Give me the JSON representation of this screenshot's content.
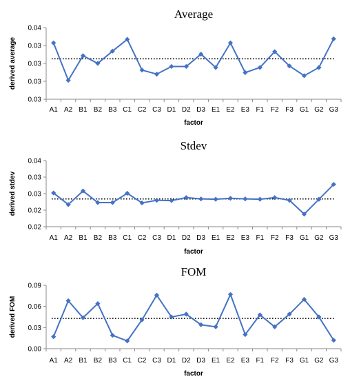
{
  "chart_data": [
    {
      "type": "line",
      "title": "Average",
      "xlabel": "factor",
      "ylabel": "derived average",
      "categories": [
        "A1",
        "A2",
        "B1",
        "B2",
        "B3",
        "C1",
        "C2",
        "C3",
        "D1",
        "D2",
        "D3",
        "E1",
        "E2",
        "E3",
        "F1",
        "F2",
        "F3",
        "G1",
        "G2",
        "G3"
      ],
      "series": [
        {
          "values": [
            0.037,
            0.0297,
            0.0345,
            0.033,
            0.0354,
            0.0377,
            0.0317,
            0.0309,
            0.0324,
            0.0324,
            0.0348,
            0.0322,
            0.037,
            0.0312,
            0.0322,
            0.0353,
            0.0325,
            0.0306,
            0.0322,
            0.0378
          ]
        }
      ],
      "reference_line": 0.0339,
      "ylim": [
        0.026,
        0.04
      ],
      "yticks": [
        "0.03",
        "0.03",
        "0.03",
        "0.03",
        "0.04"
      ],
      "color": "#4472c4",
      "reference_style": "dotted"
    },
    {
      "type": "line",
      "title": "Stdev",
      "xlabel": "factor",
      "ylabel": "derived stdev",
      "categories": [
        "A1",
        "A2",
        "B1",
        "B2",
        "B3",
        "C1",
        "C2",
        "C3",
        "D1",
        "D2",
        "D3",
        "E1",
        "E2",
        "E3",
        "F1",
        "F2",
        "F3",
        "G1",
        "G2",
        "G3"
      ],
      "series": [
        {
          "values": [
            0.0302,
            0.0267,
            0.0308,
            0.0273,
            0.0273,
            0.0301,
            0.0272,
            0.028,
            0.0279,
            0.0288,
            0.0284,
            0.0283,
            0.0286,
            0.0284,
            0.0283,
            0.0288,
            0.028,
            0.0238,
            0.0283,
            0.0328
          ]
        }
      ],
      "reference_line": 0.0284,
      "ylim": [
        0.02,
        0.04
      ],
      "yticks": [
        "0.02",
        "0.02",
        "0.03",
        "0.03",
        "0.04"
      ],
      "color": "#4472c4",
      "reference_style": "dotted"
    },
    {
      "type": "line",
      "title": "FOM",
      "xlabel": "factor",
      "ylabel": "derived FOM",
      "categories": [
        "A1",
        "A2",
        "B1",
        "B2",
        "B3",
        "C1",
        "C2",
        "C3",
        "D1",
        "D2",
        "D3",
        "E1",
        "E2",
        "E3",
        "F1",
        "F2",
        "F3",
        "G1",
        "G2",
        "G3"
      ],
      "series": [
        {
          "values": [
            0.017,
            0.068,
            0.044,
            0.064,
            0.019,
            0.011,
            0.041,
            0.076,
            0.045,
            0.049,
            0.034,
            0.031,
            0.077,
            0.02,
            0.048,
            0.031,
            0.049,
            0.07,
            0.045,
            0.012
          ]
        }
      ],
      "reference_line": 0.043,
      "ylim": [
        0.0,
        0.09
      ],
      "yticks": [
        "0.00",
        "0.03",
        "0.06",
        "0.09"
      ],
      "color": "#4472c4",
      "reference_style": "dotted"
    }
  ]
}
